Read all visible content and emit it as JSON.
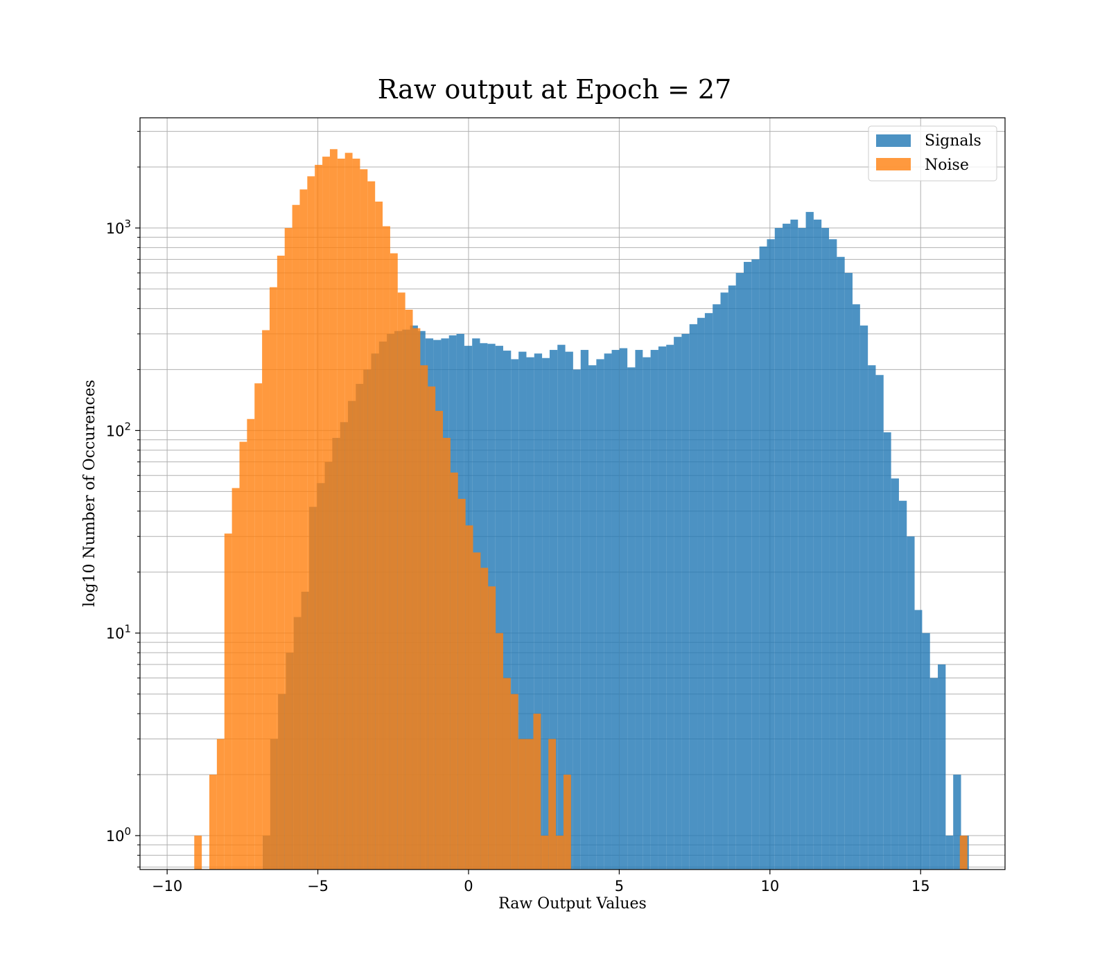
{
  "chart_data": {
    "type": "bar",
    "title": "Raw output at Epoch = 27",
    "xlabel": "Raw Output Values",
    "ylabel": "log10 Number of Occurences",
    "xlim": [
      -10.9,
      17.8
    ],
    "ylim": [
      0.68,
      3500
    ],
    "yscale": "log",
    "grid": true,
    "legend_position": "top-right",
    "x_ticks": [
      -10,
      -5,
      0,
      5,
      10,
      15
    ],
    "x_tick_labels": [
      "−10",
      "−5",
      "0",
      "5",
      "10",
      "15"
    ],
    "y_ticks": [
      1,
      10,
      100,
      1000
    ],
    "y_tick_labels": [
      {
        "base": "10",
        "exp": "0"
      },
      {
        "base": "10",
        "exp": "1"
      },
      {
        "base": "10",
        "exp": "2"
      },
      {
        "base": "10",
        "exp": "3"
      }
    ],
    "series": [
      {
        "name": "Signals",
        "color": "#1f77b4",
        "opacity": 0.8,
        "bins": [
          [
            -6.83,
            -6.58,
            1
          ],
          [
            -6.58,
            -6.32,
            3
          ],
          [
            -6.32,
            -6.06,
            5
          ],
          [
            -6.06,
            -5.8,
            8
          ],
          [
            -5.8,
            -5.55,
            12
          ],
          [
            -5.55,
            -5.29,
            16
          ],
          [
            -5.29,
            -5.03,
            42
          ],
          [
            -5.03,
            -4.77,
            55
          ],
          [
            -4.77,
            -4.52,
            70
          ],
          [
            -4.52,
            -4.26,
            92
          ],
          [
            -4.26,
            -4.0,
            110
          ],
          [
            -4.0,
            -3.74,
            140
          ],
          [
            -3.74,
            -3.49,
            170
          ],
          [
            -3.49,
            -3.23,
            200
          ],
          [
            -3.23,
            -2.97,
            240
          ],
          [
            -2.97,
            -2.71,
            275
          ],
          [
            -2.71,
            -2.46,
            300
          ],
          [
            -2.46,
            -2.2,
            310
          ],
          [
            -2.2,
            -1.94,
            315
          ],
          [
            -1.94,
            -1.68,
            330
          ],
          [
            -1.68,
            -1.43,
            310
          ],
          [
            -1.43,
            -1.17,
            285
          ],
          [
            -1.17,
            -0.91,
            280
          ],
          [
            -0.91,
            -0.65,
            285
          ],
          [
            -0.65,
            -0.4,
            295
          ],
          [
            -0.4,
            -0.14,
            300
          ],
          [
            -0.14,
            0.12,
            262
          ],
          [
            0.12,
            0.38,
            285
          ],
          [
            0.38,
            0.63,
            270
          ],
          [
            0.63,
            0.89,
            268
          ],
          [
            0.89,
            1.15,
            262
          ],
          [
            1.15,
            1.41,
            248
          ],
          [
            1.41,
            1.66,
            225
          ],
          [
            1.66,
            1.92,
            245
          ],
          [
            1.92,
            2.18,
            230
          ],
          [
            2.18,
            2.44,
            240
          ],
          [
            2.44,
            2.69,
            228
          ],
          [
            2.69,
            2.95,
            250
          ],
          [
            2.95,
            3.21,
            265
          ],
          [
            3.21,
            3.47,
            245
          ],
          [
            3.47,
            3.72,
            200
          ],
          [
            3.72,
            3.98,
            250
          ],
          [
            3.98,
            4.24,
            210
          ],
          [
            4.24,
            4.5,
            225
          ],
          [
            4.5,
            4.75,
            240
          ],
          [
            4.75,
            5.01,
            250
          ],
          [
            5.01,
            5.27,
            255
          ],
          [
            5.27,
            5.53,
            205
          ],
          [
            5.53,
            5.78,
            250
          ],
          [
            5.78,
            6.04,
            230
          ],
          [
            6.04,
            6.3,
            250
          ],
          [
            6.3,
            6.56,
            260
          ],
          [
            6.56,
            6.81,
            265
          ],
          [
            6.81,
            7.07,
            290
          ],
          [
            7.07,
            7.33,
            300
          ],
          [
            7.33,
            7.59,
            335
          ],
          [
            7.59,
            7.84,
            360
          ],
          [
            7.84,
            8.1,
            380
          ],
          [
            8.1,
            8.36,
            420
          ],
          [
            8.36,
            8.62,
            480
          ],
          [
            8.62,
            8.87,
            520
          ],
          [
            8.87,
            9.13,
            600
          ],
          [
            9.13,
            9.39,
            680
          ],
          [
            9.39,
            9.65,
            700
          ],
          [
            9.65,
            9.9,
            810
          ],
          [
            9.9,
            10.16,
            880
          ],
          [
            10.16,
            10.42,
            1000
          ],
          [
            10.42,
            10.68,
            1050
          ],
          [
            10.68,
            10.93,
            1100
          ],
          [
            10.93,
            11.19,
            1000
          ],
          [
            11.19,
            11.45,
            1200
          ],
          [
            11.45,
            11.71,
            1100
          ],
          [
            11.71,
            11.96,
            1000
          ],
          [
            11.96,
            12.22,
            880
          ],
          [
            12.22,
            12.48,
            720
          ],
          [
            12.48,
            12.74,
            600
          ],
          [
            12.74,
            12.99,
            420
          ],
          [
            12.99,
            13.25,
            330
          ],
          [
            13.25,
            13.51,
            210
          ],
          [
            13.51,
            13.77,
            188
          ],
          [
            13.77,
            14.02,
            98
          ],
          [
            14.02,
            14.28,
            58
          ],
          [
            14.28,
            14.54,
            45
          ],
          [
            14.54,
            14.8,
            30
          ],
          [
            14.8,
            15.05,
            13
          ],
          [
            15.05,
            15.31,
            10
          ],
          [
            15.31,
            15.57,
            6
          ],
          [
            15.57,
            15.83,
            7
          ],
          [
            15.83,
            16.08,
            1
          ],
          [
            16.08,
            16.34,
            2
          ],
          [
            16.34,
            16.6,
            1
          ]
        ]
      },
      {
        "name": "Noise",
        "color": "#ff7f0e",
        "opacity": 0.8,
        "bins": [
          [
            -9.1,
            -8.85,
            1
          ],
          [
            -8.6,
            -8.35,
            2
          ],
          [
            -8.35,
            -8.1,
            3
          ],
          [
            -8.1,
            -7.85,
            31
          ],
          [
            -7.85,
            -7.6,
            52
          ],
          [
            -7.6,
            -7.35,
            88
          ],
          [
            -7.35,
            -7.1,
            114
          ],
          [
            -7.1,
            -6.85,
            171
          ],
          [
            -6.85,
            -6.6,
            313
          ],
          [
            -6.6,
            -6.35,
            510
          ],
          [
            -6.35,
            -6.1,
            730
          ],
          [
            -6.1,
            -5.85,
            1000
          ],
          [
            -5.85,
            -5.6,
            1300
          ],
          [
            -5.6,
            -5.35,
            1550
          ],
          [
            -5.35,
            -5.1,
            1800
          ],
          [
            -5.1,
            -4.85,
            2050
          ],
          [
            -4.85,
            -4.6,
            2250
          ],
          [
            -4.6,
            -4.35,
            2450
          ],
          [
            -4.35,
            -4.1,
            2200
          ],
          [
            -4.1,
            -3.85,
            2350
          ],
          [
            -3.85,
            -3.6,
            2200
          ],
          [
            -3.6,
            -3.35,
            1950
          ],
          [
            -3.35,
            -3.1,
            1700
          ],
          [
            -3.1,
            -2.85,
            1350
          ],
          [
            -2.85,
            -2.6,
            1020
          ],
          [
            -2.6,
            -2.35,
            750
          ],
          [
            -2.35,
            -2.1,
            480
          ],
          [
            -2.1,
            -1.85,
            395
          ],
          [
            -1.85,
            -1.6,
            320
          ],
          [
            -1.6,
            -1.35,
            210
          ],
          [
            -1.35,
            -1.1,
            165
          ],
          [
            -1.1,
            -0.85,
            125
          ],
          [
            -0.85,
            -0.6,
            92
          ],
          [
            -0.6,
            -0.35,
            62
          ],
          [
            -0.35,
            -0.1,
            46
          ],
          [
            -0.1,
            0.15,
            34
          ],
          [
            0.15,
            0.4,
            25
          ],
          [
            0.4,
            0.65,
            21
          ],
          [
            0.65,
            0.9,
            17
          ],
          [
            0.9,
            1.15,
            10
          ],
          [
            1.15,
            1.4,
            6
          ],
          [
            1.4,
            1.65,
            5
          ],
          [
            1.65,
            1.9,
            3
          ],
          [
            1.9,
            2.15,
            3
          ],
          [
            2.15,
            2.4,
            4
          ],
          [
            2.4,
            2.65,
            1
          ],
          [
            2.65,
            2.9,
            3
          ],
          [
            2.9,
            3.15,
            1
          ],
          [
            3.15,
            3.4,
            2
          ],
          [
            16.3,
            16.55,
            1
          ]
        ]
      }
    ]
  }
}
